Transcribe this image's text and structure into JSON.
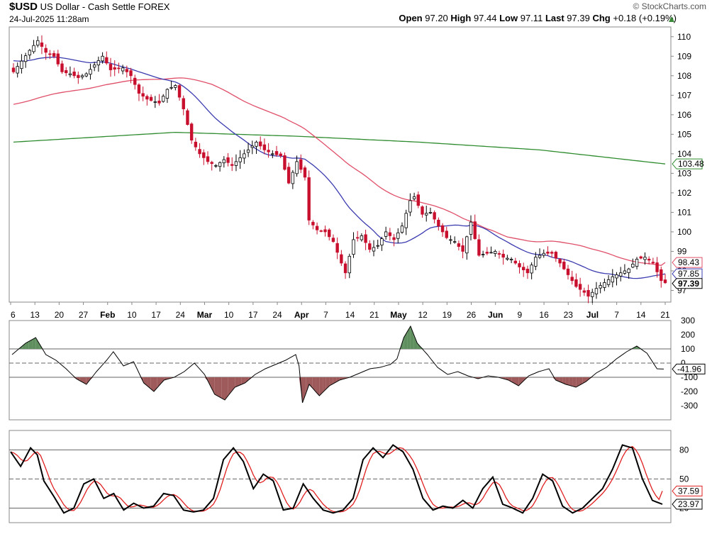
{
  "header": {
    "symbol": "$USD",
    "name": "US Dollar - Cash Settle",
    "exchange": "FOREX",
    "datetime": "24-Jul-2025 11:28am",
    "source": "© StockCharts.com",
    "open_label": "Open",
    "open": "97.20",
    "high_label": "High",
    "high": "97.44",
    "low_label": "Low",
    "low": "97.11",
    "last_label": "Last",
    "last": "97.39",
    "chg_label": "Chg",
    "chg": "+0.18 (+0.19%)"
  },
  "colors": {
    "up": "#ffffff",
    "down": "#c8102e",
    "ma_short": "#3b3bb0",
    "ma_mid": "#e0506a",
    "ma_long": "#2e8b2e",
    "stoch_k": "#000000",
    "stoch_d": "#e02020",
    "cci_pos": "#5f8f5f",
    "cci_neg": "#9e5a5a"
  },
  "chart_data": [
    {
      "type": "candlestick",
      "panel": "price",
      "ylim": [
        96.4,
        110.5
      ],
      "y_ticks": [
        97,
        98,
        99,
        100,
        101,
        102,
        103,
        104,
        105,
        106,
        107,
        108,
        109,
        110
      ],
      "x_tick_labels": [
        "6",
        "13",
        "20",
        "27",
        "Feb",
        "10",
        "17",
        "24",
        "Mar",
        "10",
        "17",
        "24",
        "Apr",
        "7",
        "14",
        "21",
        "May",
        "12",
        "19",
        "26",
        "Jun",
        "9",
        "16",
        "23",
        "Jul",
        "7",
        "14",
        "21"
      ],
      "price_anchors": [
        [
          0,
          108.2
        ],
        [
          4,
          109.3
        ],
        [
          6,
          109.8
        ],
        [
          8,
          109.2
        ],
        [
          10,
          109.0
        ],
        [
          12,
          108.2
        ],
        [
          14,
          108.1
        ],
        [
          16,
          107.9
        ],
        [
          18,
          108.1
        ],
        [
          22,
          109.0
        ],
        [
          24,
          108.3
        ],
        [
          27,
          108.4
        ],
        [
          29,
          108.0
        ],
        [
          31,
          107.1
        ],
        [
          33,
          106.8
        ],
        [
          36,
          106.6
        ],
        [
          38,
          107.3
        ],
        [
          40,
          107.5
        ],
        [
          42,
          106.3
        ],
        [
          44,
          104.7
        ],
        [
          46,
          104.0
        ],
        [
          48,
          103.6
        ],
        [
          50,
          103.4
        ],
        [
          52,
          103.7
        ],
        [
          54,
          103.4
        ],
        [
          56,
          103.8
        ],
        [
          58,
          104.2
        ],
        [
          60,
          104.6
        ],
        [
          62,
          104.2
        ],
        [
          64,
          104.0
        ],
        [
          66,
          103.9
        ],
        [
          68,
          102.5
        ],
        [
          70,
          103.6
        ],
        [
          72,
          102.8
        ],
        [
          73,
          100.6
        ],
        [
          75,
          100.1
        ],
        [
          77,
          100.0
        ],
        [
          79,
          99.5
        ],
        [
          81,
          98.4
        ],
        [
          82,
          97.9
        ],
        [
          84,
          99.6
        ],
        [
          86,
          99.8
        ],
        [
          88,
          99.1
        ],
        [
          90,
          99.3
        ],
        [
          92,
          100.0
        ],
        [
          94,
          99.6
        ],
        [
          96,
          100.3
        ],
        [
          98,
          101.6
        ],
        [
          99,
          101.8
        ],
        [
          101,
          100.9
        ],
        [
          103,
          101.0
        ],
        [
          105,
          100.3
        ],
        [
          107,
          99.7
        ],
        [
          109,
          99.5
        ],
        [
          111,
          99.0
        ],
        [
          113,
          100.5
        ],
        [
          115,
          98.8
        ],
        [
          117,
          98.9
        ],
        [
          119,
          99.0
        ],
        [
          121,
          98.7
        ],
        [
          123,
          98.6
        ],
        [
          125,
          98.2
        ],
        [
          127,
          97.9
        ],
        [
          129,
          98.7
        ],
        [
          131,
          98.9
        ],
        [
          133,
          98.9
        ],
        [
          135,
          98.4
        ],
        [
          137,
          97.8
        ],
        [
          139,
          97.2
        ],
        [
          141,
          96.9
        ],
        [
          142,
          96.7
        ],
        [
          144,
          97.1
        ],
        [
          146,
          97.4
        ],
        [
          148,
          97.7
        ],
        [
          150,
          97.9
        ],
        [
          152,
          98.1
        ],
        [
          154,
          98.6
        ],
        [
          156,
          98.7
        ],
        [
          158,
          98.4
        ],
        [
          160,
          97.5
        ],
        [
          161,
          97.39
        ]
      ],
      "ma_short": {
        "last": "97.85"
      },
      "ma_mid": {
        "last": "98.43"
      },
      "ma_long": {
        "last": "103.48"
      }
    },
    {
      "type": "line",
      "panel": "cci",
      "ylim": [
        -400,
        300
      ],
      "y_ticks": [
        "300",
        "200",
        "100",
        "0",
        "-100",
        "-200",
        "-300"
      ],
      "y_tick_values": [
        300,
        200,
        100,
        0,
        -100,
        -200,
        -300
      ],
      "last": "-41.96",
      "anchors": [
        [
          0,
          60
        ],
        [
          4,
          140
        ],
        [
          7,
          180
        ],
        [
          10,
          60
        ],
        [
          13,
          20
        ],
        [
          16,
          -40
        ],
        [
          19,
          -110
        ],
        [
          22,
          -150
        ],
        [
          25,
          -60
        ],
        [
          28,
          20
        ],
        [
          30,
          80
        ],
        [
          33,
          -20
        ],
        [
          36,
          10
        ],
        [
          39,
          -140
        ],
        [
          42,
          -200
        ],
        [
          45,
          -120
        ],
        [
          48,
          -100
        ],
        [
          51,
          -60
        ],
        [
          54,
          0
        ],
        [
          57,
          -80
        ],
        [
          60,
          -220
        ],
        [
          63,
          -260
        ],
        [
          66,
          -170
        ],
        [
          69,
          -140
        ],
        [
          72,
          -80
        ],
        [
          75,
          -40
        ],
        [
          78,
          -10
        ],
        [
          81,
          20
        ],
        [
          84,
          60
        ],
        [
          85,
          -20
        ],
        [
          86,
          -280
        ],
        [
          88,
          -150
        ],
        [
          91,
          -230
        ],
        [
          94,
          -160
        ],
        [
          97,
          -120
        ],
        [
          100,
          -100
        ],
        [
          103,
          -70
        ],
        [
          106,
          -40
        ],
        [
          109,
          -30
        ],
        [
          112,
          -10
        ],
        [
          114,
          30
        ],
        [
          116,
          180
        ],
        [
          118,
          260
        ],
        [
          120,
          140
        ],
        [
          123,
          60
        ],
        [
          126,
          -30
        ],
        [
          129,
          -80
        ],
        [
          132,
          -60
        ],
        [
          135,
          -90
        ],
        [
          138,
          -110
        ],
        [
          141,
          -90
        ],
        [
          144,
          -100
        ],
        [
          147,
          -120
        ],
        [
          150,
          -160
        ],
        [
          153,
          -90
        ],
        [
          156,
          -60
        ],
        [
          159,
          -40
        ],
        [
          161,
          -120
        ],
        [
          164,
          -150
        ],
        [
          167,
          -170
        ],
        [
          170,
          -130
        ],
        [
          173,
          -70
        ],
        [
          176,
          -30
        ],
        [
          179,
          30
        ],
        [
          182,
          80
        ],
        [
          185,
          120
        ],
        [
          188,
          70
        ],
        [
          191,
          -40
        ],
        [
          193,
          -42
        ]
      ]
    },
    {
      "type": "line",
      "panel": "stochastic",
      "ylim": [
        5,
        100
      ],
      "y_ticks": [
        "80",
        "50",
        "20"
      ],
      "y_tick_values": [
        80,
        50,
        20
      ],
      "k_last": "23.97",
      "d_last": "37.59",
      "k_anchors": [
        [
          0,
          78
        ],
        [
          3,
          63
        ],
        [
          6,
          82
        ],
        [
          8,
          75
        ],
        [
          10,
          48
        ],
        [
          13,
          32
        ],
        [
          16,
          15
        ],
        [
          19,
          20
        ],
        [
          22,
          45
        ],
        [
          25,
          50
        ],
        [
          28,
          30
        ],
        [
          31,
          35
        ],
        [
          34,
          18
        ],
        [
          37,
          25
        ],
        [
          40,
          20
        ],
        [
          43,
          22
        ],
        [
          46,
          35
        ],
        [
          49,
          33
        ],
        [
          52,
          18
        ],
        [
          55,
          16
        ],
        [
          58,
          18
        ],
        [
          61,
          30
        ],
        [
          64,
          70
        ],
        [
          67,
          82
        ],
        [
          70,
          68
        ],
        [
          73,
          40
        ],
        [
          76,
          55
        ],
        [
          79,
          48
        ],
        [
          82,
          18
        ],
        [
          85,
          20
        ],
        [
          88,
          45
        ],
        [
          91,
          30
        ],
        [
          94,
          18
        ],
        [
          97,
          15
        ],
        [
          100,
          18
        ],
        [
          103,
          30
        ],
        [
          106,
          70
        ],
        [
          109,
          82
        ],
        [
          112,
          72
        ],
        [
          115,
          85
        ],
        [
          118,
          78
        ],
        [
          121,
          60
        ],
        [
          124,
          30
        ],
        [
          127,
          18
        ],
        [
          130,
          22
        ],
        [
          133,
          20
        ],
        [
          136,
          28
        ],
        [
          139,
          20
        ],
        [
          142,
          40
        ],
        [
          145,
          52
        ],
        [
          148,
          24
        ],
        [
          151,
          20
        ],
        [
          154,
          15
        ],
        [
          157,
          30
        ],
        [
          160,
          55
        ],
        [
          163,
          48
        ],
        [
          166,
          22
        ],
        [
          169,
          15
        ],
        [
          172,
          20
        ],
        [
          175,
          30
        ],
        [
          178,
          40
        ],
        [
          181,
          60
        ],
        [
          184,
          85
        ],
        [
          187,
          82
        ],
        [
          190,
          50
        ],
        [
          193,
          28
        ],
        [
          196,
          24
        ]
      ]
    }
  ]
}
